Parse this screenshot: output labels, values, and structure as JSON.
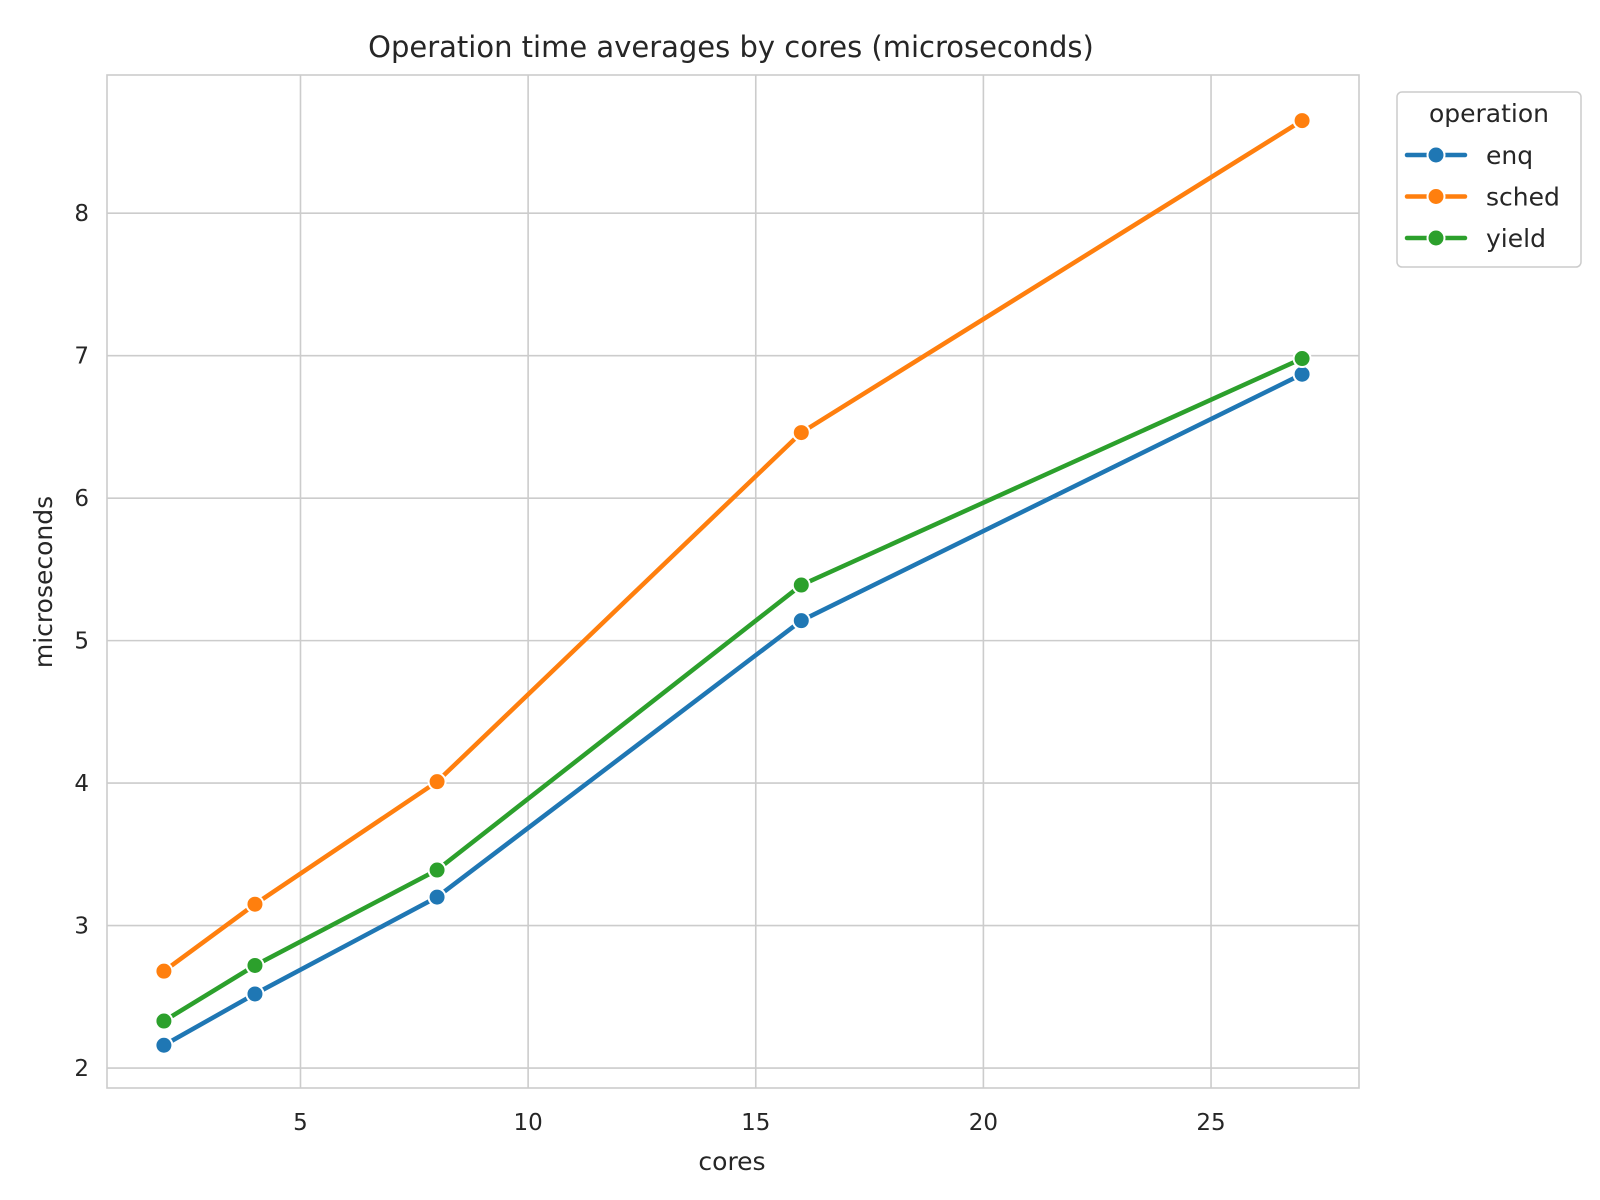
{
  "chart_data": {
    "type": "line",
    "title": "Operation time averages by cores (microseconds)",
    "xlabel": "cores",
    "ylabel": "microseconds",
    "x": [
      2,
      4,
      8,
      16,
      27
    ],
    "xlim": [
      0.75,
      28.25
    ],
    "ylim": [
      1.86,
      8.97
    ],
    "xticks": [
      5,
      10,
      15,
      20,
      25
    ],
    "yticks": [
      2,
      3,
      4,
      5,
      6,
      7,
      8
    ],
    "grid": true,
    "legend": {
      "title": "operation",
      "placement": "outside-top-right"
    },
    "series": [
      {
        "name": "enq",
        "color": "#1f77b4",
        "values": [
          2.16,
          2.52,
          3.2,
          5.14,
          6.87
        ]
      },
      {
        "name": "sched",
        "color": "#ff7f0e",
        "values": [
          2.68,
          3.15,
          4.01,
          6.46,
          8.65
        ]
      },
      {
        "name": "yield",
        "color": "#2ca02c",
        "values": [
          2.33,
          2.72,
          3.39,
          5.39,
          6.98
        ]
      }
    ]
  }
}
